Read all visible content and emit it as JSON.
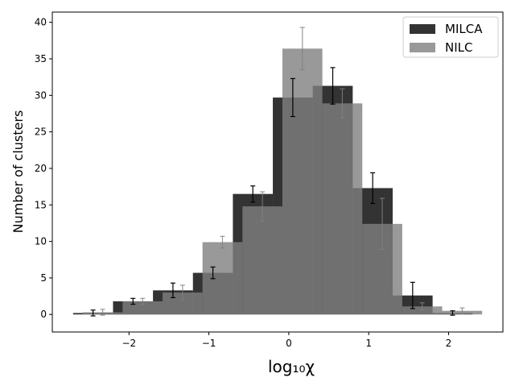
{
  "chart_data": {
    "type": "histogram",
    "xlabel": "log₁₀χ",
    "ylabel": "Number of clusters",
    "xlim": [
      -2.96,
      2.68
    ],
    "ylim": [
      -2.4,
      41.4
    ],
    "xticks": [
      {
        "value": -2,
        "label": "−2"
      },
      {
        "value": -1,
        "label": "−1"
      },
      0,
      1,
      2
    ],
    "yticks": [
      0,
      5,
      10,
      15,
      20,
      25,
      30,
      35,
      40
    ],
    "legend": "upper right",
    "alpha": 0.8,
    "series": [
      {
        "name": "MILCA",
        "color": "#000000",
        "bins": [
          -2.7,
          -2.2,
          -1.7,
          -1.2,
          -0.7,
          -0.2,
          0.3,
          0.8,
          1.3,
          1.8,
          2.3
        ],
        "values": [
          0.2,
          1.8,
          3.3,
          5.7,
          16.5,
          29.7,
          31.3,
          17.3,
          2.6,
          0.2
        ],
        "errors": [
          0.4,
          0.4,
          1.0,
          0.8,
          1.1,
          2.6,
          2.5,
          2.1,
          1.8,
          0.3
        ]
      },
      {
        "name": "NILC",
        "color": "#808080",
        "bins": [
          -2.58,
          -2.08,
          -1.58,
          -1.08,
          -0.58,
          -0.08,
          0.42,
          0.92,
          1.42,
          1.92,
          2.42
        ],
        "values": [
          0.3,
          1.8,
          3.0,
          9.9,
          14.8,
          36.4,
          28.9,
          12.4,
          1.1,
          0.5
        ],
        "errors": [
          0.4,
          0.4,
          1.0,
          0.8,
          2.0,
          2.9,
          2.0,
          3.5,
          0.5,
          0.4
        ]
      }
    ]
  }
}
